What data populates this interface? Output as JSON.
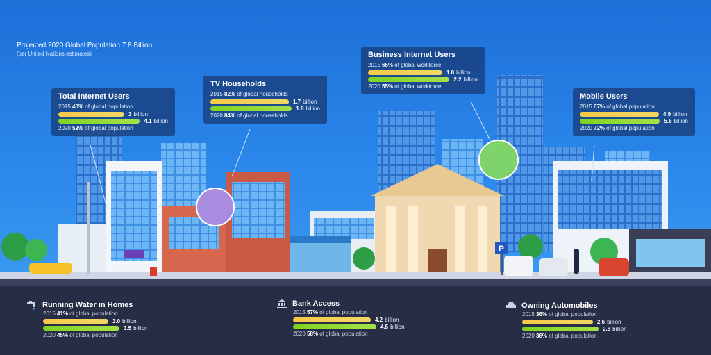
{
  "header": {
    "title": "Projected 2020 Global Population 7.8 Billion",
    "subtitle": "(per United Nations estimates)"
  },
  "cards": [
    {
      "id": "total-internet",
      "title": "Total Internet Users",
      "y2015_pre": "2015",
      "y2015_pct": "40%",
      "y2015_post": "of global population",
      "bar1": {
        "value": "3",
        "unit": "billion",
        "fraction": 0.73
      },
      "bar2": {
        "value": "4.1",
        "unit": "billion",
        "fraction": 1.0
      },
      "y2020_pre": "2020",
      "y2020_pct": "52%",
      "y2020_post": "of global population"
    },
    {
      "id": "tv",
      "title": "TV Households",
      "y2015_pre": "2015",
      "y2015_pct": "82%",
      "y2015_post": "of global households",
      "bar1": {
        "value": "1.7",
        "unit": "billion",
        "fraction": 0.94
      },
      "bar2": {
        "value": "1.8",
        "unit": "billion",
        "fraction": 1.0
      },
      "y2020_pre": "2020",
      "y2020_pct": "84%",
      "y2020_post": "of global households"
    },
    {
      "id": "business",
      "title": "Business Internet Users",
      "y2015_pre": "2015",
      "y2015_pct": "65%",
      "y2015_post": "of global workforce",
      "bar1": {
        "value": "1.8",
        "unit": "billion",
        "fraction": 0.82
      },
      "bar2": {
        "value": "2.2",
        "unit": "billion",
        "fraction": 1.0
      },
      "y2020_pre": "2020",
      "y2020_pct": "55%",
      "y2020_post": "of global workforce"
    },
    {
      "id": "mobile",
      "title": "Mobile Users",
      "y2015_pre": "2015",
      "y2015_pct": "67%",
      "y2015_post": "of global population",
      "bar1": {
        "value": "4.9",
        "unit": "billion",
        "fraction": 0.875
      },
      "bar2": {
        "value": "5.6",
        "unit": "billion",
        "fraction": 1.0
      },
      "y2020_pre": "2020",
      "y2020_pct": "72%",
      "y2020_post": "of global population"
    }
  ],
  "stats": [
    {
      "id": "water",
      "title": "Running Water in Homes",
      "icon": "faucet-icon",
      "y2015_pre": "2015",
      "y2015_pct": "41%",
      "y2015_post": "of global population",
      "bar1": {
        "value": "3.0",
        "unit": "billion",
        "fraction": 0.857
      },
      "bar2": {
        "value": "3.5",
        "unit": "billion",
        "fraction": 1.0
      },
      "y2020_pre": "2020",
      "y2020_pct": "45%",
      "y2020_post": "of global population"
    },
    {
      "id": "bank",
      "title": "Bank Access",
      "icon": "bank-icon",
      "y2015_pre": "2015",
      "y2015_pct": "57%",
      "y2015_post": "of global population",
      "bar1": {
        "value": "4.2",
        "unit": "billion",
        "fraction": 0.933
      },
      "bar2": {
        "value": "4.5",
        "unit": "billion",
        "fraction": 1.0
      },
      "y2020_pre": "2020",
      "y2020_pct": "58%",
      "y2020_post": "of global population"
    },
    {
      "id": "auto",
      "title": "Owning Automobiles",
      "icon": "car-icon",
      "y2015_pre": "2015",
      "y2015_pct": "36%",
      "y2015_post": "of global population",
      "bar1": {
        "value": "2.6",
        "unit": "billion",
        "fraction": 0.93
      },
      "bar2": {
        "value": "2.8",
        "unit": "billion",
        "fraction": 1.0
      },
      "y2020_pre": "2020",
      "y2020_pct": "36%",
      "y2020_post": "of global population"
    }
  ],
  "parking_sign": "P",
  "colors": {
    "bar_2015": "#f7c948",
    "bar_2020": "#7ed321",
    "card_bg": "#183c78",
    "bottom_bg": "#262d45"
  }
}
